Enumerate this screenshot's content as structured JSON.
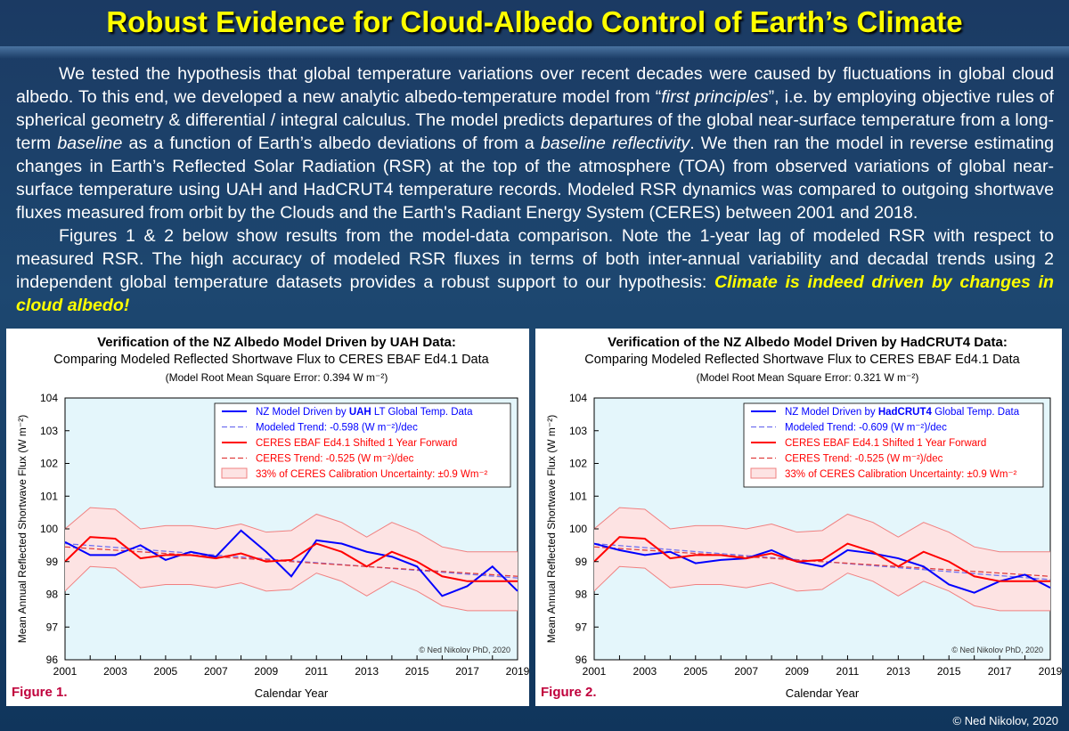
{
  "header": {
    "title": "Robust Evidence for Cloud-Albedo Control of Earth’s Climate"
  },
  "intro": {
    "p1_a": "We tested the hypothesis that global temperature variations over recent decades were caused by fluctuations in global cloud albedo. To this end, we developed a new analytic albedo-temperature model from “",
    "p1_b": "first principles",
    "p1_c": "”, i.e. by employing objective rules of spherical geometry & differential / integral calculus. The model predicts departures of the global near-surface temperature from a long-term ",
    "p1_d": "baseline",
    "p1_e": " as a function of Earth’s albedo deviations of from a ",
    "p1_f": "baseline reflectivity",
    "p1_g": ". We then ran the model in reverse estimating changes in Earth’s Reflected Solar Radiation (RSR) at the top of the atmosphere (TOA) from observed variations of global near-surface temperature using UAH and HadCRUT4 temperature records. Modeled RSR dynamics was compared to outgoing shortwave fluxes measured from orbit by the Clouds and the Earth's Radiant Energy System (CERES) between 2001 and 2018.",
    "p2_a": "Figures 1 & 2 below show results from the model-data comparison. Note the 1-year lag of modeled RSR with respect to measured RSR. The high accuracy of modeled RSR fluxes in terms of both inter-annual variability and decadal trends using 2 independent global temperature datasets provides a robust support to our hypothesis: ",
    "p2_b": "Climate is indeed driven by changes in cloud albedo!"
  },
  "footer": {
    "credit": "© Ned Nikolov, 2020"
  },
  "chart_data": [
    {
      "type": "line",
      "figure_label": "Figure 1.",
      "title": "Verification of the NZ Albedo Model Driven by UAH Data:",
      "subtitle": "Comparing Modeled Reflected Shortwave Flux to CERES EBAF Ed4.1 Data",
      "rmse_note": "(Model Root Mean Square Error: 0.394 W m⁻²)",
      "xlabel": "Calendar Year",
      "ylabel": "Mean Annual Reflected Shortwave Flux (W m⁻²)",
      "xlim": [
        2001,
        2019
      ],
      "ylim": [
        96,
        104
      ],
      "x_ticks": [
        2001,
        2003,
        2005,
        2007,
        2009,
        2011,
        2013,
        2015,
        2017,
        2019
      ],
      "y_ticks": [
        96,
        97,
        98,
        99,
        100,
        101,
        102,
        103,
        104
      ],
      "grid": false,
      "legend_position": "top-right",
      "copyright": "© Ned Nikolov PhD, 2020",
      "colors": {
        "model": "#0000ff",
        "ceres": "#ff0000",
        "band_fill": "#fde3e3",
        "band_edge": "#f08080",
        "plot_bg": "#e4f6fb"
      },
      "legend": [
        {
          "pre": "NZ Model Driven by ",
          "bold": "UAH",
          "post": " LT Global Temp. Data"
        },
        {
          "pre": "Modeled Trend: -0.598 (W m⁻²)/dec",
          "bold": "",
          "post": ""
        },
        {
          "pre": "CERES EBAF Ed4.1 Shifted 1 Year Forward",
          "bold": "",
          "post": ""
        },
        {
          "pre": "CERES Trend: -0.525 (W m⁻²)/dec",
          "bold": "",
          "post": ""
        },
        {
          "pre": "33% of CERES Calibration Uncertainty: ±0.9 Wm⁻²",
          "bold": "",
          "post": ""
        }
      ],
      "x": [
        2001,
        2002,
        2003,
        2004,
        2005,
        2006,
        2007,
        2008,
        2009,
        2010,
        2011,
        2012,
        2013,
        2014,
        2015,
        2016,
        2017,
        2018,
        2019
      ],
      "series": [
        {
          "name": "NZ Model Driven by UAH LT Global Temp. Data",
          "values": [
            99.6,
            99.2,
            99.2,
            99.5,
            99.05,
            99.3,
            99.15,
            99.95,
            99.3,
            98.55,
            99.65,
            99.55,
            99.3,
            99.15,
            98.85,
            97.95,
            98.25,
            98.85,
            98.1
          ]
        },
        {
          "name": "CERES EBAF Ed4.1 Shifted 1 Year Forward",
          "values": [
            99.0,
            99.75,
            99.7,
            99.1,
            99.2,
            99.2,
            99.1,
            99.25,
            99.0,
            99.05,
            99.55,
            99.3,
            98.85,
            99.3,
            99.0,
            98.55,
            98.4,
            98.4,
            98.4
          ]
        }
      ],
      "band_upper": [
        100.0,
        100.65,
        100.6,
        100.0,
        100.1,
        100.1,
        100.0,
        100.15,
        99.9,
        99.95,
        100.45,
        100.2,
        99.75,
        100.2,
        99.9,
        99.45,
        99.3,
        99.3,
        99.3
      ],
      "band_lower": [
        98.1,
        98.85,
        98.8,
        98.2,
        98.3,
        98.3,
        98.2,
        98.35,
        98.1,
        98.15,
        98.65,
        98.4,
        97.95,
        98.4,
        98.1,
        97.65,
        97.5,
        97.5,
        97.5
      ],
      "trends": [
        {
          "name": "Modeled Trend",
          "start": 99.55,
          "end": 98.5
        },
        {
          "name": "CERES Trend",
          "start": 99.45,
          "end": 98.55
        }
      ]
    },
    {
      "type": "line",
      "figure_label": "Figure 2.",
      "title": "Verification of the NZ Albedo Model Driven by HadCRUT4 Data:",
      "subtitle": "Comparing Modeled Reflected Shortwave Flux to CERES EBAF Ed4.1 Data",
      "rmse_note": "(Model Root Mean Square Error: 0.321 W m⁻²)",
      "xlabel": "Calendar Year",
      "ylabel": "Mean Annual Reflected Shortwave Flux (W m⁻²)",
      "xlim": [
        2001,
        2019
      ],
      "ylim": [
        96,
        104
      ],
      "x_ticks": [
        2001,
        2003,
        2005,
        2007,
        2009,
        2011,
        2013,
        2015,
        2017,
        2019
      ],
      "y_ticks": [
        96,
        97,
        98,
        99,
        100,
        101,
        102,
        103,
        104
      ],
      "grid": false,
      "legend_position": "top-right",
      "copyright": "© Ned Nikolov PhD, 2020",
      "colors": {
        "model": "#0000ff",
        "ceres": "#ff0000",
        "band_fill": "#fde3e3",
        "band_edge": "#f08080",
        "plot_bg": "#e4f6fb"
      },
      "legend": [
        {
          "pre": "NZ Model Driven by ",
          "bold": "HadCRUT4",
          "post": " Global Temp. Data"
        },
        {
          "pre": "Modeled Trend: -0.609 (W m⁻²)/dec",
          "bold": "",
          "post": ""
        },
        {
          "pre": "CERES EBAF Ed4.1 Shifted 1 Year Forward",
          "bold": "",
          "post": ""
        },
        {
          "pre": "CERES Trend: -0.525 (W m⁻²)/dec",
          "bold": "",
          "post": ""
        },
        {
          "pre": "33% of CERES Calibration Uncertainty: ±0.9 Wm⁻²",
          "bold": "",
          "post": ""
        }
      ],
      "x": [
        2001,
        2002,
        2003,
        2004,
        2005,
        2006,
        2007,
        2008,
        2009,
        2010,
        2011,
        2012,
        2013,
        2014,
        2015,
        2016,
        2017,
        2018,
        2019
      ],
      "series": [
        {
          "name": "NZ Model Driven by HadCRUT4 Global Temp. Data",
          "values": [
            99.55,
            99.35,
            99.2,
            99.3,
            98.95,
            99.05,
            99.1,
            99.35,
            99.0,
            98.85,
            99.35,
            99.25,
            99.1,
            98.85,
            98.3,
            98.05,
            98.4,
            98.6,
            98.2
          ]
        },
        {
          "name": "CERES EBAF Ed4.1 Shifted 1 Year Forward",
          "values": [
            99.0,
            99.75,
            99.7,
            99.1,
            99.2,
            99.2,
            99.1,
            99.25,
            99.0,
            99.05,
            99.55,
            99.3,
            98.85,
            99.3,
            99.0,
            98.55,
            98.4,
            98.4,
            98.4
          ]
        }
      ],
      "band_upper": [
        100.0,
        100.65,
        100.6,
        100.0,
        100.1,
        100.1,
        100.0,
        100.15,
        99.9,
        99.95,
        100.45,
        100.2,
        99.75,
        100.2,
        99.9,
        99.45,
        99.3,
        99.3,
        99.3
      ],
      "band_lower": [
        98.1,
        98.85,
        98.8,
        98.2,
        98.3,
        98.3,
        98.2,
        98.35,
        98.1,
        98.15,
        98.65,
        98.4,
        97.95,
        98.4,
        98.1,
        97.65,
        97.5,
        97.5,
        97.5
      ],
      "trends": [
        {
          "name": "Modeled Trend",
          "start": 99.55,
          "end": 98.45
        },
        {
          "name": "CERES Trend",
          "start": 99.45,
          "end": 98.55
        }
      ]
    }
  ]
}
